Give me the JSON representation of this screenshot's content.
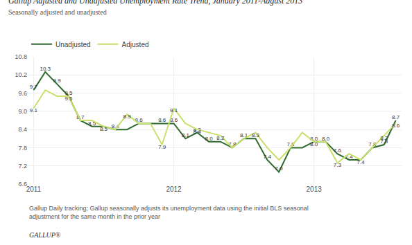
{
  "chart_data": {
    "type": "line",
    "title": "Gallup Adjusted and Unadjusted Unemployment Rate Trend, January 2011-August 2013",
    "subtitle": "Seasonally adjusted and unadjusted",
    "annotations": [
      "Gallup Daily tracking; Gallup seasonally adjusts its unemployment data using the initial BLS seasonal\nadjustment for the same month in the prior year",
      "GALLUP®"
    ],
    "categories": [
      "2011",
      null,
      null,
      null,
      null,
      null,
      null,
      null,
      null,
      null,
      null,
      null,
      "2012",
      null,
      null,
      null,
      null,
      null,
      null,
      null,
      null,
      null,
      null,
      null,
      "2013",
      null,
      null,
      null,
      null,
      null,
      null,
      null
    ],
    "series": [
      {
        "name": "Unadjusted",
        "color": "#2d6a2d",
        "values": [
          9.7,
          10.3,
          9.9,
          9.5,
          8.7,
          8.5,
          8.5,
          8.4,
          8.4,
          8.6,
          8.6,
          8.6,
          8.6,
          8.1,
          8.3,
          8.0,
          8.0,
          7.8,
          8.1,
          8.1,
          7.4,
          7.0,
          7.8,
          7.8,
          8.0,
          8.0,
          7.6,
          7.4,
          7.4,
          7.8,
          7.9,
          8.7
        ],
        "value_labels": [
          "9.7",
          "10.3",
          "9.9",
          "9.5",
          "8.7",
          "8.5",
          null,
          "8.4",
          null,
          "8.6",
          null,
          "8.6",
          "8.6",
          "8.1",
          "8.3",
          "8.0",
          null,
          "7.8",
          "8.1",
          null,
          "7.4",
          "7.0",
          "7.8",
          null,
          "8.0",
          "8.0",
          "7.6",
          "7.4",
          null,
          "7.8",
          "7.9",
          "8.7"
        ]
      },
      {
        "name": "Adjusted",
        "color": "#c8e06a",
        "values": [
          9.1,
          9.7,
          9.5,
          9.5,
          8.7,
          8.7,
          8.5,
          8.4,
          8.9,
          8.6,
          8.6,
          7.9,
          9.1,
          8.6,
          8.4,
          8.3,
          8.2,
          7.8,
          8.1,
          8.3,
          7.8,
          7.4,
          7.8,
          8.3,
          8.0,
          8.0,
          7.3,
          7.6,
          7.4,
          7.8,
          8.2,
          8.6
        ],
        "value_labels": [
          "9.1",
          null,
          null,
          "9.5",
          null,
          null,
          "8.5",
          null,
          "8.9",
          null,
          null,
          "7.9",
          "9.1",
          null,
          "8.4",
          null,
          "8.2",
          null,
          null,
          "8.3",
          null,
          null,
          null,
          null,
          "8.0",
          null,
          "7.3",
          null,
          "7.4",
          null,
          "8.2",
          "8.6"
        ]
      }
    ],
    "ylim": [
      6.6,
      10.8
    ],
    "yticks": [
      6.6,
      7.2,
      7.8,
      8.4,
      {
        "value": 9.0,
        "label": "9.0"
      },
      9.6,
      10.2,
      10.8
    ],
    "grid": true,
    "data_labels": true,
    "legend": "top left"
  }
}
